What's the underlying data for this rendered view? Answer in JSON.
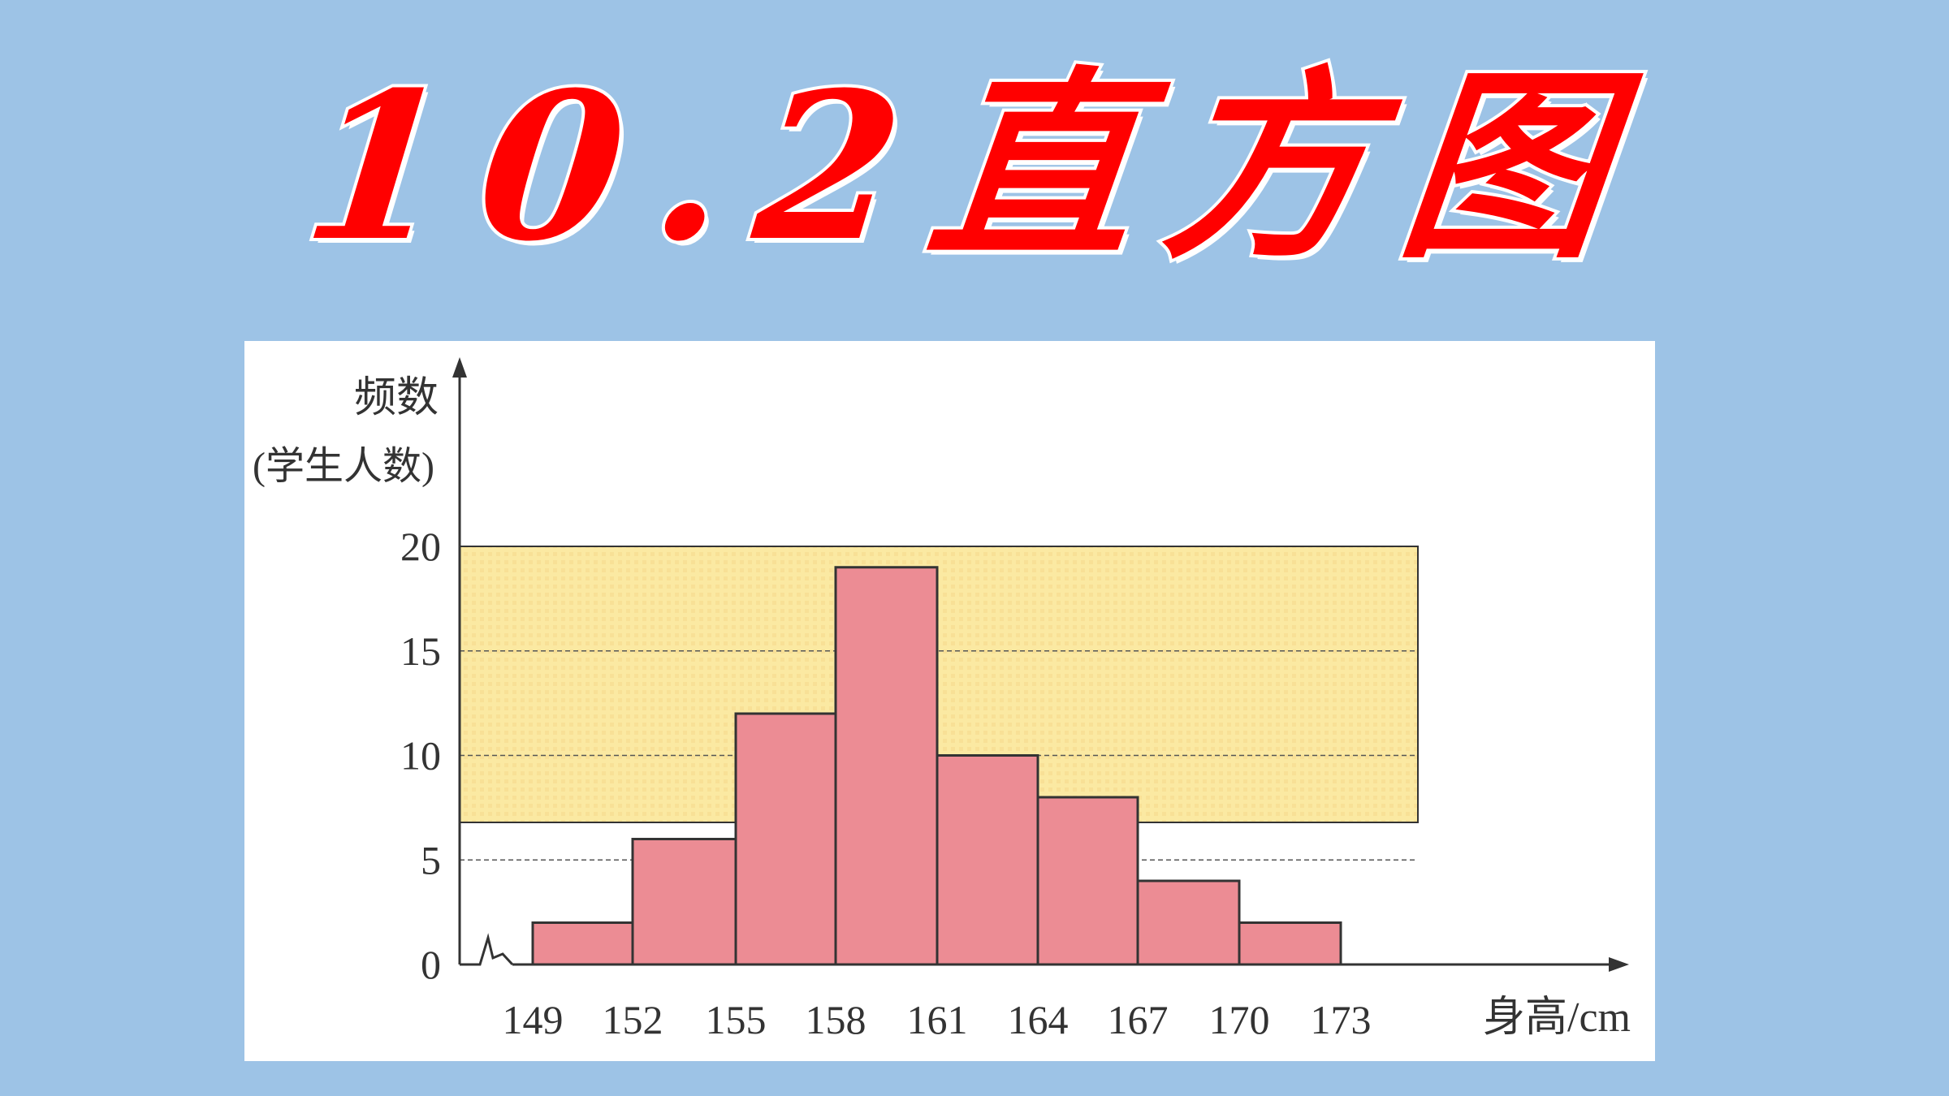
{
  "slide": {
    "title": "10.2直方图"
  },
  "colors": {
    "background": "#9dc3e6",
    "title": "#ff0000",
    "plot_area": "#fbe9a2",
    "bar_fill": "#ec8c94",
    "line": "#333333"
  },
  "chart_data": {
    "type": "bar",
    "title": "",
    "ylabel_line1": "频数",
    "ylabel_line2": "(学生人数)",
    "xlabel": "身高/cm",
    "bin_edges": [
      149,
      152,
      155,
      158,
      161,
      164,
      167,
      170,
      173
    ],
    "x_tick_labels": [
      "149",
      "152",
      "155",
      "158",
      "161",
      "164",
      "167",
      "170",
      "173"
    ],
    "values": [
      2,
      6,
      12,
      19,
      10,
      8,
      4,
      2
    ],
    "ylim": [
      0,
      20
    ],
    "y_ticks": [
      0,
      5,
      10,
      15,
      20
    ],
    "y_tick_labels": [
      "0",
      "5",
      "10",
      "15",
      "20"
    ],
    "grid": "horizontal dashed",
    "axis_break": true
  }
}
